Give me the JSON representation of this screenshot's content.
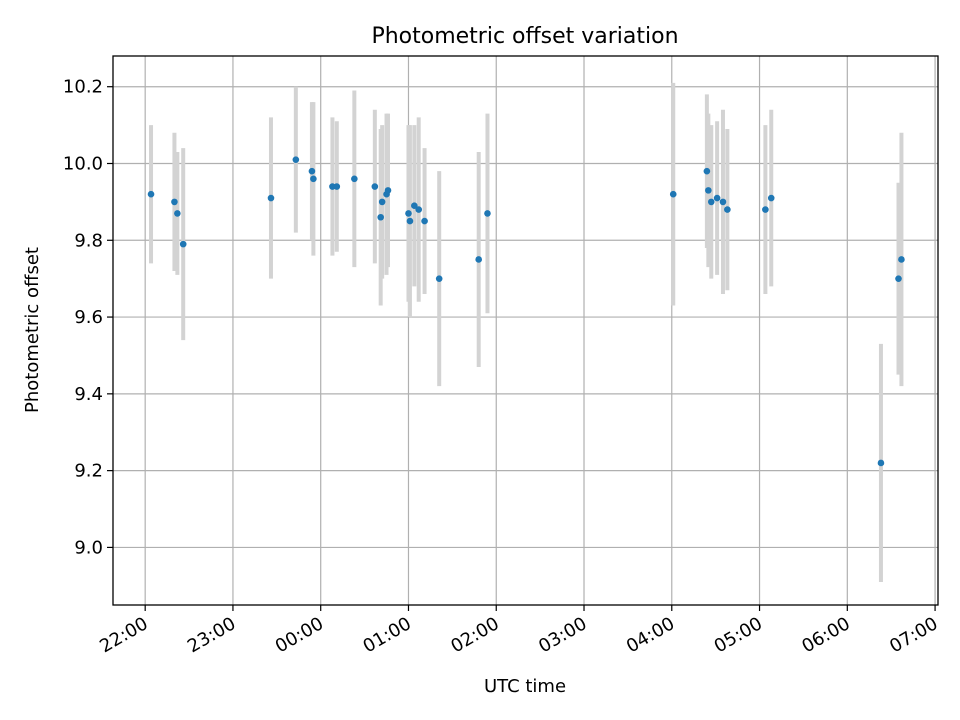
{
  "chart_data": {
    "type": "scatter",
    "title": "Photometric offset variation",
    "xlabel": "UTC time",
    "ylabel": "Photometric offset",
    "x_ticks": [
      "22:00",
      "23:00",
      "00:00",
      "01:00",
      "02:00",
      "03:00",
      "04:00",
      "05:00",
      "06:00",
      "07:00"
    ],
    "y_ticks": [
      "9.0",
      "9.2",
      "9.4",
      "9.6",
      "9.8",
      "10.0",
      "10.2"
    ],
    "xlim": [
      "21:38",
      "07:02"
    ],
    "ylim": [
      8.85,
      10.28
    ],
    "grid": true,
    "colors": {
      "point": "#1f77b4",
      "errorbar": "#d3d3d3",
      "grid": "#b0b0b0"
    },
    "points": [
      {
        "x": "22:04",
        "y": 9.92,
        "err": 0.18
      },
      {
        "x": "22:20",
        "y": 9.9,
        "err": 0.18
      },
      {
        "x": "22:22",
        "y": 9.87,
        "err": 0.16
      },
      {
        "x": "22:26",
        "y": 9.79,
        "err": 0.25
      },
      {
        "x": "23:26",
        "y": 9.91,
        "err": 0.21
      },
      {
        "x": "23:43",
        "y": 10.01,
        "err": 0.19
      },
      {
        "x": "23:54",
        "y": 9.98,
        "err": 0.18
      },
      {
        "x": "23:55",
        "y": 9.96,
        "err": 0.2
      },
      {
        "x": "00:08",
        "y": 9.94,
        "err": 0.18
      },
      {
        "x": "00:11",
        "y": 9.94,
        "err": 0.17
      },
      {
        "x": "00:23",
        "y": 9.96,
        "err": 0.23
      },
      {
        "x": "00:37",
        "y": 9.94,
        "err": 0.2
      },
      {
        "x": "00:41",
        "y": 9.86,
        "err": 0.23
      },
      {
        "x": "00:42",
        "y": 9.9,
        "err": 0.2
      },
      {
        "x": "00:45",
        "y": 9.92,
        "err": 0.21
      },
      {
        "x": "00:46",
        "y": 9.93,
        "err": 0.2
      },
      {
        "x": "01:00",
        "y": 9.87,
        "err": 0.23
      },
      {
        "x": "01:01",
        "y": 9.85,
        "err": 0.25
      },
      {
        "x": "01:04",
        "y": 9.89,
        "err": 0.21
      },
      {
        "x": "01:07",
        "y": 9.88,
        "err": 0.24
      },
      {
        "x": "01:11",
        "y": 9.85,
        "err": 0.19
      },
      {
        "x": "01:21",
        "y": 9.7,
        "err": 0.28
      },
      {
        "x": "01:48",
        "y": 9.75,
        "err": 0.28
      },
      {
        "x": "01:54",
        "y": 9.87,
        "err": 0.26
      },
      {
        "x": "04:01",
        "y": 9.92,
        "err": 0.29
      },
      {
        "x": "04:24",
        "y": 9.98,
        "err": 0.2
      },
      {
        "x": "04:25",
        "y": 9.93,
        "err": 0.2
      },
      {
        "x": "04:27",
        "y": 9.9,
        "err": 0.2
      },
      {
        "x": "04:31",
        "y": 9.91,
        "err": 0.2
      },
      {
        "x": "04:35",
        "y": 9.9,
        "err": 0.24
      },
      {
        "x": "04:38",
        "y": 9.88,
        "err": 0.21
      },
      {
        "x": "05:04",
        "y": 9.88,
        "err": 0.22
      },
      {
        "x": "05:08",
        "y": 9.91,
        "err": 0.23
      },
      {
        "x": "06:23",
        "y": 9.22,
        "err": 0.31
      },
      {
        "x": "06:35",
        "y": 9.7,
        "err": 0.25
      },
      {
        "x": "06:37",
        "y": 9.75,
        "err": 0.33
      }
    ]
  }
}
